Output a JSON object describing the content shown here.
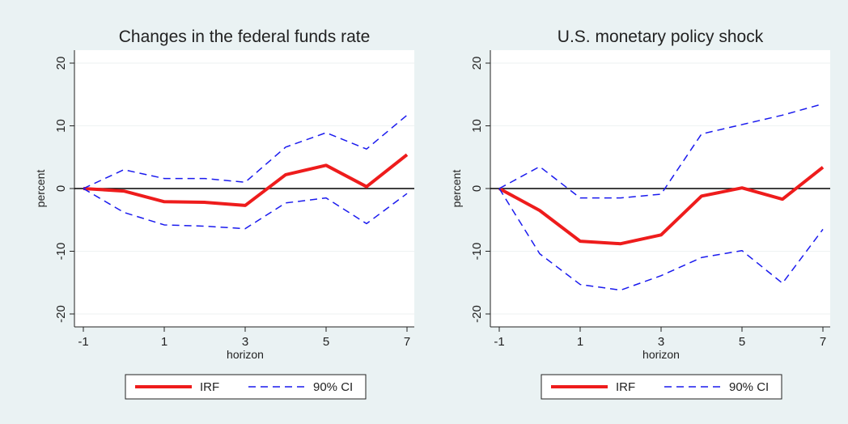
{
  "chart_data": [
    {
      "type": "line",
      "title": "Changes in the federal funds rate",
      "x_label": "horizon",
      "y_label": "percent",
      "x": [
        -1,
        0,
        1,
        2,
        3,
        4,
        5,
        6,
        7
      ],
      "xlim": [
        -1,
        7
      ],
      "xticks": [
        -1,
        1,
        3,
        5,
        7
      ],
      "ylim": [
        -20,
        20
      ],
      "yticks": [
        -20,
        -10,
        0,
        10,
        20
      ],
      "grid": true,
      "hline": 0,
      "series": [
        {
          "name": "IRF",
          "color": "#ee1c1c",
          "values": [
            0,
            -0.4,
            -2.1,
            -2.2,
            -2.7,
            2.2,
            3.7,
            0.3,
            5.4
          ]
        },
        {
          "name": "90% CI",
          "color": "#1a1aee",
          "dashed": true,
          "upper": [
            0,
            3.0,
            1.6,
            1.6,
            1.0,
            6.6,
            8.9,
            6.3,
            11.7
          ],
          "lower": [
            0,
            -3.8,
            -5.8,
            -6.0,
            -6.4,
            -2.3,
            -1.5,
            -5.6,
            -0.8
          ]
        }
      ]
    },
    {
      "type": "line",
      "title": "U.S. monetary policy shock",
      "x_label": "horizon",
      "y_label": "percent",
      "x": [
        -1,
        0,
        1,
        2,
        3,
        4,
        5,
        6,
        7
      ],
      "xlim": [
        -1,
        7
      ],
      "xticks": [
        -1,
        1,
        3,
        5,
        7
      ],
      "ylim": [
        -20,
        20
      ],
      "yticks": [
        -20,
        -10,
        0,
        10,
        20
      ],
      "grid": true,
      "hline": 0,
      "series": [
        {
          "name": "IRF",
          "color": "#ee1c1c",
          "values": [
            0,
            -3.5,
            -8.4,
            -8.8,
            -7.4,
            -1.2,
            0.1,
            -1.7,
            3.4
          ]
        },
        {
          "name": "90% CI",
          "color": "#1a1aee",
          "dashed": true,
          "upper": [
            0,
            3.5,
            -1.5,
            -1.5,
            -0.9,
            8.7,
            10.2,
            11.7,
            13.5
          ],
          "lower": [
            0,
            -10.4,
            -15.3,
            -16.2,
            -13.9,
            -11.0,
            -9.9,
            -15.1,
            -6.5
          ]
        }
      ]
    }
  ]
}
